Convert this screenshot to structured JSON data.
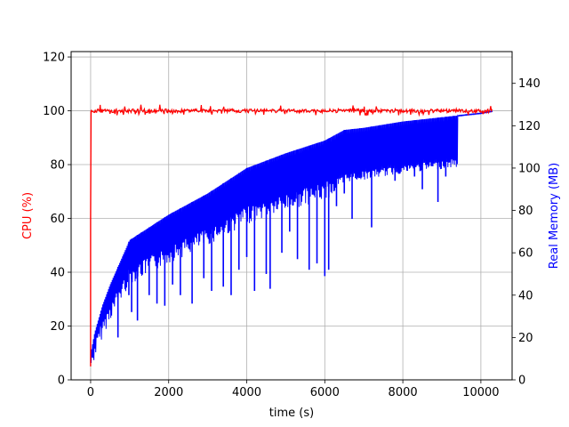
{
  "chart_data": {
    "type": "line",
    "title": "",
    "xlabel": "time (s)",
    "ylabel_left": "CPU (%)",
    "ylabel_right": "Real Memory (MB)",
    "xlim": [
      -500,
      10800
    ],
    "ylim_left": [
      0,
      122
    ],
    "ylim_right": [
      0,
      155
    ],
    "x_ticks": [
      0,
      2000,
      4000,
      6000,
      8000,
      10000
    ],
    "x_tick_labels": [
      "0",
      "2000",
      "4000",
      "6000",
      "8000",
      "10000"
    ],
    "y_left_ticks": [
      0,
      20,
      40,
      60,
      80,
      100,
      120
    ],
    "y_left_tick_labels": [
      "0",
      "20",
      "40",
      "60",
      "80",
      "100",
      "120"
    ],
    "y_right_ticks": [
      0,
      20,
      40,
      60,
      80,
      100,
      120,
      140
    ],
    "y_right_tick_labels": [
      "0",
      "20",
      "40",
      "60",
      "80",
      "100",
      "120",
      "140"
    ],
    "grid": true,
    "colors": {
      "cpu": "#ff0000",
      "memory": "#0000ff"
    },
    "series": [
      {
        "axis": "left",
        "color": "#ff0000",
        "x": [
          0,
          10,
          20,
          50,
          100,
          200,
          400,
          1000,
          2000,
          4000,
          6000,
          8000,
          10000,
          10300
        ],
        "y": [
          5,
          60,
          100,
          100,
          100,
          100,
          100,
          100,
          100,
          100,
          100,
          100,
          100,
          100
        ]
      },
      {
        "axis": "right",
        "color": "#0000ff",
        "x": [
          0,
          100,
          300,
          500,
          1000,
          1500,
          2000,
          3000,
          4000,
          5000,
          6000,
          6500,
          7000,
          8000,
          9000,
          10000,
          10300
        ],
        "y": [
          12,
          22,
          35,
          45,
          66,
          72,
          78,
          88,
          100,
          107,
          113,
          118,
          119,
          122,
          124,
          126,
          127
        ]
      }
    ],
    "memory_dips": [
      {
        "x": 700,
        "y": 20
      },
      {
        "x": 980,
        "y": 40
      },
      {
        "x": 1050,
        "y": 32
      },
      {
        "x": 1200,
        "y": 28
      },
      {
        "x": 1300,
        "y": 50
      },
      {
        "x": 1500,
        "y": 40
      },
      {
        "x": 1700,
        "y": 36
      },
      {
        "x": 1900,
        "y": 35
      },
      {
        "x": 2100,
        "y": 45
      },
      {
        "x": 2300,
        "y": 40
      },
      {
        "x": 2600,
        "y": 36
      },
      {
        "x": 2900,
        "y": 48
      },
      {
        "x": 3100,
        "y": 42
      },
      {
        "x": 3400,
        "y": 44
      },
      {
        "x": 3600,
        "y": 40
      },
      {
        "x": 3800,
        "y": 52
      },
      {
        "x": 4000,
        "y": 58
      },
      {
        "x": 4200,
        "y": 42
      },
      {
        "x": 4500,
        "y": 50
      },
      {
        "x": 4600,
        "y": 43
      },
      {
        "x": 4900,
        "y": 60
      },
      {
        "x": 5100,
        "y": 70
      },
      {
        "x": 5300,
        "y": 57
      },
      {
        "x": 5600,
        "y": 52
      },
      {
        "x": 5800,
        "y": 55
      },
      {
        "x": 6000,
        "y": 49
      },
      {
        "x": 6100,
        "y": 52
      },
      {
        "x": 6300,
        "y": 82
      },
      {
        "x": 6500,
        "y": 88
      },
      {
        "x": 6700,
        "y": 76
      },
      {
        "x": 6900,
        "y": 98
      },
      {
        "x": 7200,
        "y": 72
      },
      {
        "x": 7400,
        "y": 98
      },
      {
        "x": 7600,
        "y": 108
      },
      {
        "x": 7800,
        "y": 94
      },
      {
        "x": 8100,
        "y": 110
      },
      {
        "x": 8300,
        "y": 96
      },
      {
        "x": 8500,
        "y": 90
      },
      {
        "x": 8700,
        "y": 104
      },
      {
        "x": 8900,
        "y": 84
      },
      {
        "x": 9000,
        "y": 118
      },
      {
        "x": 9100,
        "y": 96
      },
      {
        "x": 9200,
        "y": 110
      },
      {
        "x": 9300,
        "y": 114
      }
    ]
  }
}
